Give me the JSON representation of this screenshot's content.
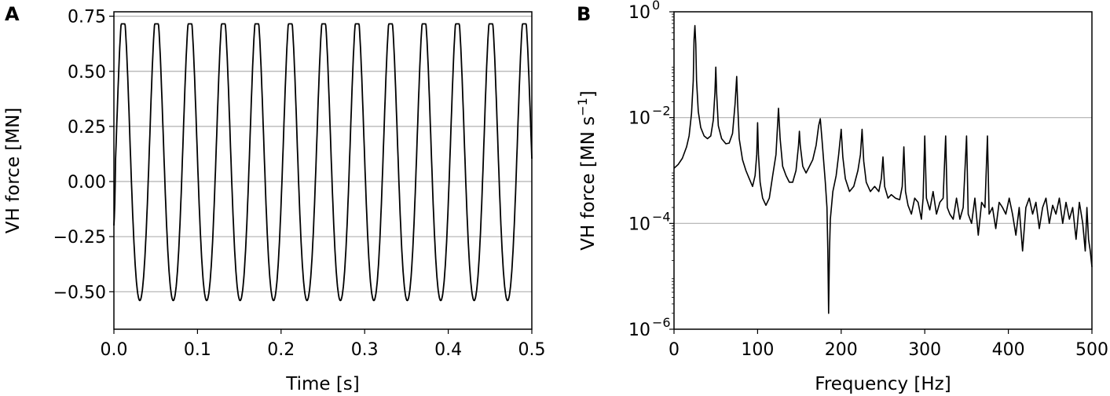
{
  "chart_data": [
    {
      "panel": "A",
      "type": "line",
      "xlabel": "Time [s]",
      "ylabel": "VH force [MN]",
      "xlim": [
        0.0,
        0.5
      ],
      "ylim": [
        -0.67,
        0.77
      ],
      "xticks": [
        "0.0",
        "0.1",
        "0.2",
        "0.3",
        "0.4",
        "0.5"
      ],
      "yticks": [
        "−0.50",
        "−0.25",
        "0.00",
        "0.25",
        "0.50",
        "0.75"
      ],
      "ytick_values": [
        -0.5,
        -0.25,
        0.0,
        0.25,
        0.5,
        0.75
      ],
      "grid": "horizontal",
      "series": [
        {
          "color": "#000000",
          "frequency_hz": 25,
          "amplitude_max": 0.715,
          "amplitude_min": -0.6,
          "x_start": 0.0,
          "y_start": -0.2,
          "peak_times": [
            0.011,
            0.051,
            0.091,
            0.131,
            0.171,
            0.211,
            0.251,
            0.291,
            0.331,
            0.371,
            0.411,
            0.451,
            0.491
          ],
          "trough_times": [
            0.031,
            0.071,
            0.111,
            0.151,
            0.191,
            0.231,
            0.271,
            0.311,
            0.351,
            0.391,
            0.431,
            0.471
          ]
        }
      ]
    },
    {
      "panel": "B",
      "type": "line",
      "xlabel": "Frequency [Hz]",
      "ylabel": "VH force [MN s",
      "ylabel_exponent": "−1",
      "ylabel_suffix": "]",
      "xlim": [
        0,
        500
      ],
      "ylim_log10": [
        -6,
        0
      ],
      "yscale": "log",
      "xticks": [
        "0",
        "100",
        "200",
        "300",
        "400",
        "500"
      ],
      "yticks": [
        {
          "base": "10",
          "exp": "0",
          "value_log10": 0
        },
        {
          "base": "10",
          "exp": "−2",
          "value_log10": -2
        },
        {
          "base": "10",
          "exp": "−4",
          "value_log10": -4
        },
        {
          "base": "10",
          "exp": "−6",
          "value_log10": -6
        }
      ],
      "grid": "horizontal",
      "series": [
        {
          "color": "#000000",
          "points": [
            [
              0,
              0.0011
            ],
            [
              5,
              0.0013
            ],
            [
              10,
              0.0017
            ],
            [
              15,
              0.0028
            ],
            [
              18,
              0.0045
            ],
            [
              21,
              0.012
            ],
            [
              23,
              0.05
            ],
            [
              24,
              0.3
            ],
            [
              25,
              0.55
            ],
            [
              26,
              0.25
            ],
            [
              27,
              0.05
            ],
            [
              29,
              0.013
            ],
            [
              32,
              0.0065
            ],
            [
              36,
              0.0045
            ],
            [
              40,
              0.004
            ],
            [
              44,
              0.0045
            ],
            [
              47,
              0.009
            ],
            [
              49,
              0.03
            ],
            [
              50,
              0.09
            ],
            [
              51,
              0.028
            ],
            [
              53,
              0.007
            ],
            [
              57,
              0.004
            ],
            [
              62,
              0.0032
            ],
            [
              66,
              0.0033
            ],
            [
              70,
              0.005
            ],
            [
              73,
              0.018
            ],
            [
              75,
              0.06
            ],
            [
              76,
              0.02
            ],
            [
              78,
              0.004
            ],
            [
              82,
              0.0016
            ],
            [
              86,
              0.001
            ],
            [
              90,
              0.0007
            ],
            [
              94,
              0.0005
            ],
            [
              97,
              0.0008
            ],
            [
              99,
              0.002
            ],
            [
              100,
              0.008
            ],
            [
              101,
              0.002
            ],
            [
              103,
              0.0006
            ],
            [
              106,
              0.0003
            ],
            [
              110,
              0.00022
            ],
            [
              114,
              0.0003
            ],
            [
              118,
              0.0008
            ],
            [
              122,
              0.002
            ],
            [
              125,
              0.015
            ],
            [
              127,
              0.004
            ],
            [
              130,
              0.0012
            ],
            [
              134,
              0.0008
            ],
            [
              138,
              0.0006
            ],
            [
              142,
              0.0006
            ],
            [
              146,
              0.001
            ],
            [
              149,
              0.003
            ],
            [
              150,
              0.0055
            ],
            [
              151,
              0.003
            ],
            [
              154,
              0.0012
            ],
            [
              158,
              0.0009
            ],
            [
              162,
              0.0012
            ],
            [
              166,
              0.0016
            ],
            [
              170,
              0.003
            ],
            [
              173,
              0.007
            ],
            [
              175,
              0.0095
            ],
            [
              177,
              0.004
            ],
            [
              179,
              0.0015
            ],
            [
              181,
              0.0006
            ],
            [
              183,
              0.0002
            ],
            [
              184,
              3e-05
            ],
            [
              185,
              2e-06
            ],
            [
              186,
              3e-05
            ],
            [
              187,
              0.00012
            ],
            [
              190,
              0.0004
            ],
            [
              194,
              0.0008
            ],
            [
              197,
              0.002
            ],
            [
              200,
              0.006
            ],
            [
              202,
              0.0018
            ],
            [
              205,
              0.0007
            ],
            [
              210,
              0.0004
            ],
            [
              215,
              0.0005
            ],
            [
              220,
              0.001
            ],
            [
              223,
              0.002
            ],
            [
              225,
              0.006
            ],
            [
              227,
              0.0015
            ],
            [
              230,
              0.0006
            ],
            [
              235,
              0.0004
            ],
            [
              240,
              0.0005
            ],
            [
              245,
              0.0004
            ],
            [
              248,
              0.0007
            ],
            [
              250,
              0.0018
            ],
            [
              252,
              0.0005
            ],
            [
              256,
              0.0003
            ],
            [
              260,
              0.00035
            ],
            [
              265,
              0.0003
            ],
            [
              270,
              0.00028
            ],
            [
              273,
              0.0005
            ],
            [
              275,
              0.0028
            ],
            [
              277,
              0.0004
            ],
            [
              280,
              0.00022
            ],
            [
              284,
              0.00015
            ],
            [
              288,
              0.0003
            ],
            [
              292,
              0.00025
            ],
            [
              296,
              0.00012
            ],
            [
              298,
              0.0003
            ],
            [
              300,
              0.0045
            ],
            [
              302,
              0.0003
            ],
            [
              306,
              0.00018
            ],
            [
              310,
              0.0004
            ],
            [
              314,
              0.00015
            ],
            [
              318,
              0.00025
            ],
            [
              322,
              0.0003
            ],
            [
              325,
              0.0045
            ],
            [
              327,
              0.0002
            ],
            [
              330,
              0.00015
            ],
            [
              334,
              0.00012
            ],
            [
              338,
              0.0003
            ],
            [
              342,
              0.00012
            ],
            [
              346,
              0.0002
            ],
            [
              350,
              0.0045
            ],
            [
              352,
              0.00015
            ],
            [
              356,
              0.0001
            ],
            [
              360,
              0.0003
            ],
            [
              364,
              6e-05
            ],
            [
              368,
              0.00025
            ],
            [
              372,
              0.0002
            ],
            [
              375,
              0.0045
            ],
            [
              377,
              0.00015
            ],
            [
              381,
              0.0002
            ],
            [
              385,
              8e-05
            ],
            [
              389,
              0.00025
            ],
            [
              393,
              0.0002
            ],
            [
              397,
              0.00015
            ],
            [
              401,
              0.0003
            ],
            [
              405,
              0.00015
            ],
            [
              409,
              6e-05
            ],
            [
              413,
              0.0002
            ],
            [
              417,
              3e-05
            ],
            [
              421,
              0.0002
            ],
            [
              425,
              0.0003
            ],
            [
              429,
              0.00015
            ],
            [
              433,
              0.00025
            ],
            [
              437,
              8e-05
            ],
            [
              441,
              0.0002
            ],
            [
              445,
              0.0003
            ],
            [
              449,
              0.0001
            ],
            [
              453,
              0.00022
            ],
            [
              457,
              0.00015
            ],
            [
              461,
              0.0003
            ],
            [
              465,
              0.0001
            ],
            [
              469,
              0.00025
            ],
            [
              473,
              0.00012
            ],
            [
              477,
              0.0002
            ],
            [
              481,
              5e-05
            ],
            [
              485,
              0.00025
            ],
            [
              489,
              0.0001
            ],
            [
              492,
              3e-05
            ],
            [
              494,
              0.0002
            ],
            [
              496,
              5e-05
            ],
            [
              498,
              3e-05
            ],
            [
              500,
              1.5e-05
            ]
          ]
        }
      ]
    }
  ]
}
